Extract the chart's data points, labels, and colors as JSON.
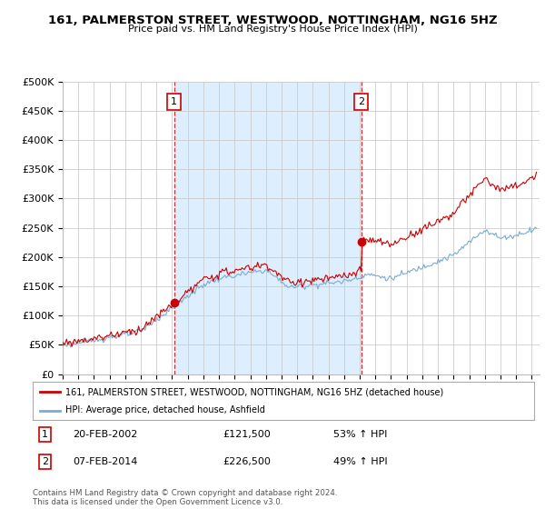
{
  "title": "161, PALMERSTON STREET, WESTWOOD, NOTTINGHAM, NG16 5HZ",
  "subtitle": "Price paid vs. HM Land Registry's House Price Index (HPI)",
  "ylim": [
    0,
    500000
  ],
  "yticks": [
    0,
    50000,
    100000,
    150000,
    200000,
    250000,
    300000,
    350000,
    400000,
    450000,
    500000
  ],
  "ytick_labels": [
    "£0",
    "£50K",
    "£100K",
    "£150K",
    "£200K",
    "£250K",
    "£300K",
    "£350K",
    "£400K",
    "£450K",
    "£500K"
  ],
  "sale1_date": 2002.13,
  "sale1_price": 121500,
  "sale1_label": "1",
  "sale2_date": 2014.1,
  "sale2_price": 226500,
  "sale2_label": "2",
  "red_line_color": "#cc0000",
  "blue_line_color": "#7aadd4",
  "shade_color": "#ddeeff",
  "background_color": "#ffffff",
  "grid_color": "#cccccc",
  "legend_red_label": "161, PALMERSTON STREET, WESTWOOD, NOTTINGHAM, NG16 5HZ (detached house)",
  "legend_blue_label": "HPI: Average price, detached house, Ashfield",
  "annotation1_text": "20-FEB-2002",
  "annotation1_price": "£121,500",
  "annotation1_hpi": "53% ↑ HPI",
  "annotation2_text": "07-FEB-2014",
  "annotation2_price": "£226,500",
  "annotation2_hpi": "49% ↑ HPI",
  "copyright_text": "Contains HM Land Registry data © Crown copyright and database right 2024.\nThis data is licensed under the Open Government Licence v3.0.",
  "xstart": 1995.0,
  "xend": 2025.5
}
